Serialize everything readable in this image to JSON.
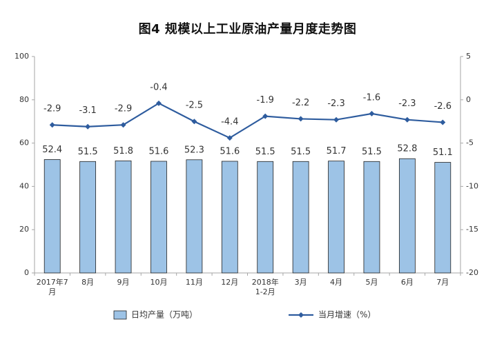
{
  "chart_data": {
    "type": "bar",
    "title": "图4  规模以上工业原油产量月度走势图",
    "categories": [
      "2017年7月",
      "8月",
      "9月",
      "10月",
      "11月",
      "12月",
      "2018年1-2月",
      "3月",
      "4月",
      "5月",
      "6月",
      "7月"
    ],
    "category_lines": [
      [
        "2017年7",
        "月"
      ],
      [
        "8月"
      ],
      [
        "9月"
      ],
      [
        "10月"
      ],
      [
        "11月"
      ],
      [
        "12月"
      ],
      [
        "2018年",
        "1-2月"
      ],
      [
        "3月"
      ],
      [
        "4月"
      ],
      [
        "5月"
      ],
      [
        "6月"
      ],
      [
        "7月"
      ]
    ],
    "series": [
      {
        "name": "日均产量（万吨）",
        "type": "bar",
        "axis": "left",
        "values": [
          52.4,
          51.5,
          51.8,
          51.6,
          52.3,
          51.6,
          51.5,
          51.5,
          51.7,
          51.5,
          52.8,
          51.1
        ],
        "labels": [
          "52.4",
          "51.5",
          "51.8",
          "51.6",
          "52.3",
          "51.6",
          "51.5",
          "51.5",
          "51.7",
          "51.5",
          "52.8",
          "51.1"
        ],
        "color": "#9DC3E6"
      },
      {
        "name": "当月增速（%）",
        "type": "line",
        "axis": "right",
        "values": [
          -2.9,
          -3.1,
          -2.9,
          -0.4,
          -2.5,
          -4.4,
          -1.9,
          -2.2,
          -2.3,
          -1.6,
          -2.3,
          -2.6
        ],
        "labels": [
          "-2.9",
          "-3.1",
          "-2.9",
          "-0.4",
          "-2.5",
          "-4.4",
          "-1.9",
          "-2.2",
          "-2.3",
          "-1.6",
          "-2.3",
          "-2.6"
        ],
        "color": "#2E5C9E"
      }
    ],
    "y_left": {
      "lim": [
        0,
        100
      ],
      "ticks": [
        0,
        20,
        40,
        60,
        80,
        100
      ],
      "tick_labels": [
        "0",
        "20",
        "40",
        "60",
        "80",
        "100"
      ]
    },
    "y_right": {
      "lim": [
        -20,
        5
      ],
      "ticks": [
        -20,
        -15,
        -10,
        -5,
        0,
        5
      ],
      "tick_labels": [
        "-20",
        "-15",
        "-10",
        "-5",
        "0",
        "5"
      ]
    },
    "grid": false,
    "legend_position": "bottom",
    "colors": {
      "axis": "#a6a6a6",
      "text": "#333333",
      "bar_fill": "#9DC3E6",
      "bar_stroke": "#1f1f1f",
      "line": "#2E5C9E"
    }
  }
}
